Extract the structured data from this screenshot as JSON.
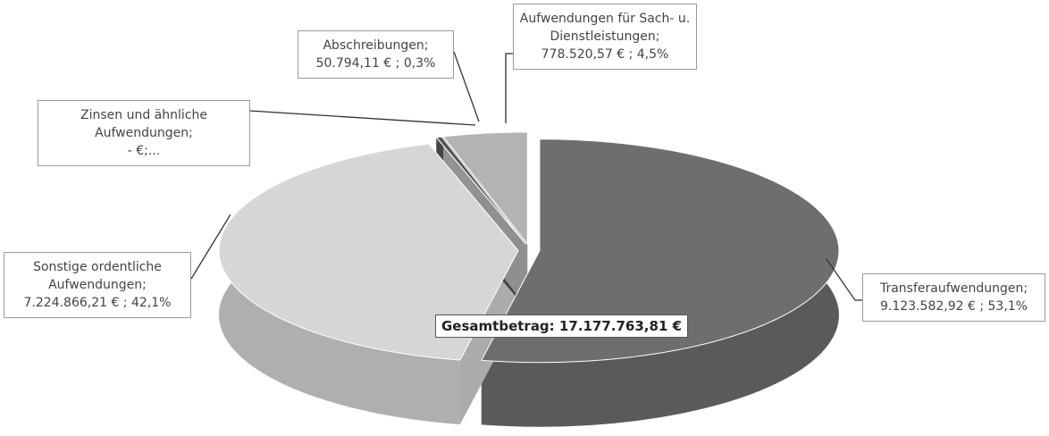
{
  "chart_data": {
    "type": "pie",
    "categories": [
      "Transferaufwendungen;",
      "Sonstige ordentliche Aufwendungen;",
      "Zinsen und ähnliche Aufwendungen;",
      "Abschreibungen;",
      "Aufwendungen für Sach- u. Dienstleistungen;"
    ],
    "values": [
      9123582.92,
      7224866.21,
      0,
      50794.11,
      778520.57
    ],
    "value_labels": [
      "9.123.582,92 € ; 53,1%",
      "7.224.866,21 € ; 42,1%",
      "- €;...",
      "50.794,11 € ; 0,3%",
      "778.520,57 € ; 4,5%"
    ],
    "colors": [
      "#6e6e6e",
      "#d6d6d6",
      "#8a8a8a",
      "#545454",
      "#b3b3b3"
    ],
    "annotation": "Gesamtbetrag: 17.177.763,81 €"
  }
}
